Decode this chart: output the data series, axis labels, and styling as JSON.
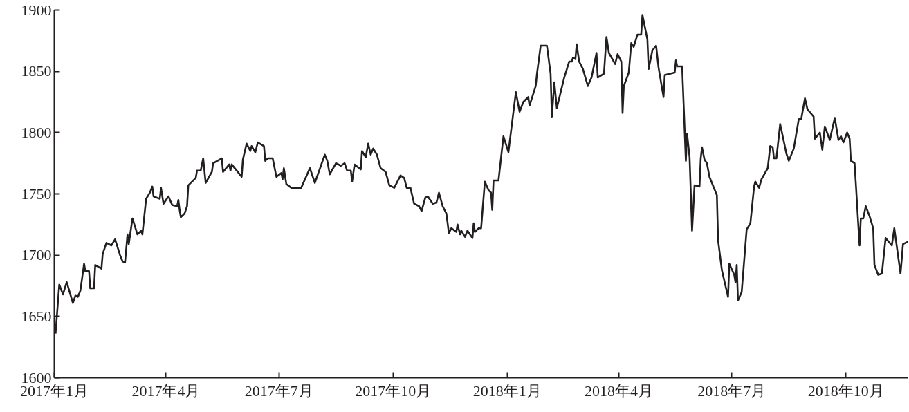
{
  "chart_data": {
    "type": "line",
    "xlim": [
      "2017-01-01",
      "2018-11-20"
    ],
    "ylim": [
      1600,
      1900
    ],
    "yticks": [
      1600,
      1650,
      1700,
      1750,
      1800,
      1850,
      1900
    ],
    "xticks": [
      {
        "value": "2017-01-01",
        "label": "2017年1月"
      },
      {
        "value": "2017-04-01",
        "label": "2017年4月"
      },
      {
        "value": "2017-07-01",
        "label": "2017年7月"
      },
      {
        "value": "2017-10-01",
        "label": "2017年10月"
      },
      {
        "value": "2018-01-01",
        "label": "2018年1月"
      },
      {
        "value": "2018-04-01",
        "label": "2018年4月"
      },
      {
        "value": "2018-07-01",
        "label": "2018年7月"
      },
      {
        "value": "2018-10-01",
        "label": "2018年10月"
      }
    ],
    "grid": false,
    "marker": "none",
    "line_style": "solid",
    "x": [
      "2017-01-02",
      "2017-01-05",
      "2017-01-08",
      "2017-01-11",
      "2017-01-16",
      "2017-01-18",
      "2017-01-20",
      "2017-01-22",
      "2017-01-25",
      "2017-01-26",
      "2017-01-29",
      "2017-01-30",
      "2017-02-02",
      "2017-02-03",
      "2017-02-08",
      "2017-02-09",
      "2017-02-12",
      "2017-02-16",
      "2017-02-19",
      "2017-02-23",
      "2017-02-25",
      "2017-02-27",
      "2017-03-01",
      "2017-03-02",
      "2017-03-05",
      "2017-03-09",
      "2017-03-12",
      "2017-03-13",
      "2017-03-16",
      "2017-03-19",
      "2017-03-21",
      "2017-03-22",
      "2017-03-27",
      "2017-03-28",
      "2017-03-30",
      "2017-04-03",
      "2017-04-06",
      "2017-04-10",
      "2017-04-11",
      "2017-04-12",
      "2017-04-13",
      "2017-04-16",
      "2017-04-18",
      "2017-04-19",
      "2017-04-25",
      "2017-04-26",
      "2017-04-29",
      "2017-05-01",
      "2017-05-03",
      "2017-05-08",
      "2017-05-09",
      "2017-05-16",
      "2017-05-17",
      "2017-05-22",
      "2017-05-23",
      "2017-05-24",
      "2017-06-01",
      "2017-06-02",
      "2017-06-05",
      "2017-06-08",
      "2017-06-09",
      "2017-06-12",
      "2017-06-14",
      "2017-06-19",
      "2017-06-20",
      "2017-06-22",
      "2017-06-26",
      "2017-06-29",
      "2017-07-03",
      "2017-07-04",
      "2017-07-05",
      "2017-07-07",
      "2017-07-11",
      "2017-07-19",
      "2017-07-26",
      "2017-07-30",
      "2017-08-07",
      "2017-08-09",
      "2017-08-11",
      "2017-08-16",
      "2017-08-20",
      "2017-08-23",
      "2017-08-25",
      "2017-08-28",
      "2017-08-29",
      "2017-08-31",
      "2017-09-05",
      "2017-09-06",
      "2017-09-09",
      "2017-09-11",
      "2017-09-13",
      "2017-09-15",
      "2017-09-18",
      "2017-09-21",
      "2017-09-25",
      "2017-09-28",
      "2017-10-02",
      "2017-10-07",
      "2017-10-10",
      "2017-10-12",
      "2017-10-15",
      "2017-10-18",
      "2017-10-22",
      "2017-10-24",
      "2017-10-27",
      "2017-10-29",
      "2017-11-02",
      "2017-11-05",
      "2017-11-07",
      "2017-11-10",
      "2017-11-13",
      "2017-11-15",
      "2017-11-17",
      "2017-11-21",
      "2017-11-22",
      "2017-11-24",
      "2017-11-25",
      "2017-11-28",
      "2017-11-30",
      "2017-12-02",
      "2017-12-04",
      "2017-12-05",
      "2017-12-06",
      "2017-12-09",
      "2017-12-11",
      "2017-12-14",
      "2017-12-17",
      "2017-12-19",
      "2017-12-20",
      "2017-12-21",
      "2017-12-25",
      "2017-12-29",
      "2018-01-02",
      "2018-01-08",
      "2018-01-11",
      "2018-01-14",
      "2018-01-18",
      "2018-01-19",
      "2018-01-24",
      "2018-01-25",
      "2018-01-28",
      "2018-02-02",
      "2018-02-05",
      "2018-02-06",
      "2018-02-08",
      "2018-02-10",
      "2018-02-16",
      "2018-02-20",
      "2018-02-22",
      "2018-02-23",
      "2018-02-25",
      "2018-02-26",
      "2018-02-28",
      "2018-03-03",
      "2018-03-07",
      "2018-03-10",
      "2018-03-14",
      "2018-03-15",
      "2018-03-20",
      "2018-03-22",
      "2018-03-24",
      "2018-03-29",
      "2018-03-31",
      "2018-04-03",
      "2018-04-04",
      "2018-04-05",
      "2018-04-09",
      "2018-04-11",
      "2018-04-13",
      "2018-04-16",
      "2018-04-19",
      "2018-04-20",
      "2018-04-24",
      "2018-04-25",
      "2018-04-28",
      "2018-05-01",
      "2018-05-03",
      "2018-05-07",
      "2018-05-08",
      "2018-05-12",
      "2018-05-16",
      "2018-05-17",
      "2018-05-18",
      "2018-05-22",
      "2018-05-25",
      "2018-05-26",
      "2018-05-28",
      "2018-05-30",
      "2018-06-01",
      "2018-06-05",
      "2018-06-06",
      "2018-06-07",
      "2018-06-09",
      "2018-06-11",
      "2018-06-13",
      "2018-06-19",
      "2018-06-20",
      "2018-06-23",
      "2018-06-28",
      "2018-06-29",
      "2018-07-03",
      "2018-07-04",
      "2018-07-05",
      "2018-07-06",
      "2018-07-09",
      "2018-07-13",
      "2018-07-16",
      "2018-07-19",
      "2018-07-20",
      "2018-07-23",
      "2018-07-25",
      "2018-07-30",
      "2018-08-01",
      "2018-08-03",
      "2018-08-04",
      "2018-08-06",
      "2018-08-09",
      "2018-08-14",
      "2018-08-16",
      "2018-08-20",
      "2018-08-24",
      "2018-08-26",
      "2018-08-29",
      "2018-08-31",
      "2018-09-05",
      "2018-09-06",
      "2018-09-10",
      "2018-09-12",
      "2018-09-14",
      "2018-09-18",
      "2018-09-22",
      "2018-09-25",
      "2018-09-27",
      "2018-09-29",
      "2018-10-02",
      "2018-10-04",
      "2018-10-05",
      "2018-10-08",
      "2018-10-12",
      "2018-10-13",
      "2018-10-15",
      "2018-10-17",
      "2018-10-20",
      "2018-10-23",
      "2018-10-24",
      "2018-10-27",
      "2018-10-30",
      "2018-11-02",
      "2018-11-07",
      "2018-11-09",
      "2018-11-14",
      "2018-11-16",
      "2018-11-20"
    ],
    "series": [
      {
        "color": "#231f20",
        "values": [
          1636,
          1676,
          1668,
          1678,
          1661,
          1667,
          1666,
          1671,
          1693,
          1687,
          1687,
          1673,
          1673,
          1692,
          1689,
          1701,
          1710,
          1708,
          1713,
          1700,
          1695,
          1694,
          1717,
          1709,
          1730,
          1717,
          1720,
          1717,
          1746,
          1751,
          1756,
          1748,
          1746,
          1755,
          1742,
          1748,
          1741,
          1740,
          1745,
          1737,
          1731,
          1734,
          1740,
          1757,
          1763,
          1769,
          1769,
          1779,
          1759,
          1768,
          1775,
          1779,
          1768,
          1774,
          1769,
          1774,
          1764,
          1778,
          1791,
          1785,
          1789,
          1784,
          1792,
          1789,
          1777,
          1779,
          1779,
          1764,
          1767,
          1762,
          1771,
          1758,
          1755,
          1755,
          1771,
          1759,
          1782,
          1777,
          1766,
          1775,
          1773,
          1775,
          1769,
          1769,
          1760,
          1774,
          1770,
          1785,
          1780,
          1791,
          1782,
          1787,
          1782,
          1771,
          1768,
          1757,
          1755,
          1765,
          1763,
          1755,
          1755,
          1742,
          1740,
          1736,
          1747,
          1748,
          1742,
          1743,
          1751,
          1740,
          1734,
          1718,
          1722,
          1719,
          1725,
          1717,
          1720,
          1715,
          1720,
          1717,
          1714,
          1726,
          1719,
          1722,
          1722,
          1760,
          1753,
          1751,
          1737,
          1761,
          1761,
          1797,
          1784,
          1833,
          1817,
          1825,
          1829,
          1822,
          1838,
          1848,
          1871,
          1871,
          1848,
          1813,
          1841,
          1820,
          1845,
          1858,
          1858,
          1861,
          1860,
          1872,
          1858,
          1852,
          1838,
          1845,
          1865,
          1845,
          1848,
          1878,
          1865,
          1856,
          1864,
          1858,
          1816,
          1838,
          1849,
          1873,
          1870,
          1880,
          1880,
          1896,
          1876,
          1852,
          1867,
          1871,
          1853,
          1829,
          1847,
          1848,
          1849,
          1859,
          1854,
          1854,
          1777,
          1799,
          1780,
          1720,
          1757,
          1756,
          1779,
          1788,
          1778,
          1775,
          1764,
          1749,
          1712,
          1688,
          1666,
          1693,
          1684,
          1678,
          1692,
          1663,
          1670,
          1721,
          1726,
          1756,
          1760,
          1755,
          1762,
          1771,
          1789,
          1788,
          1779,
          1779,
          1807,
          1783,
          1777,
          1787,
          1811,
          1811,
          1828,
          1819,
          1813,
          1795,
          1800,
          1786,
          1805,
          1794,
          1812,
          1794,
          1797,
          1792,
          1800,
          1795,
          1777,
          1775,
          1708,
          1730,
          1730,
          1740,
          1732,
          1722,
          1692,
          1684,
          1685,
          1714,
          1708,
          1722,
          1685,
          1709,
          1711
        ]
      }
    ]
  }
}
